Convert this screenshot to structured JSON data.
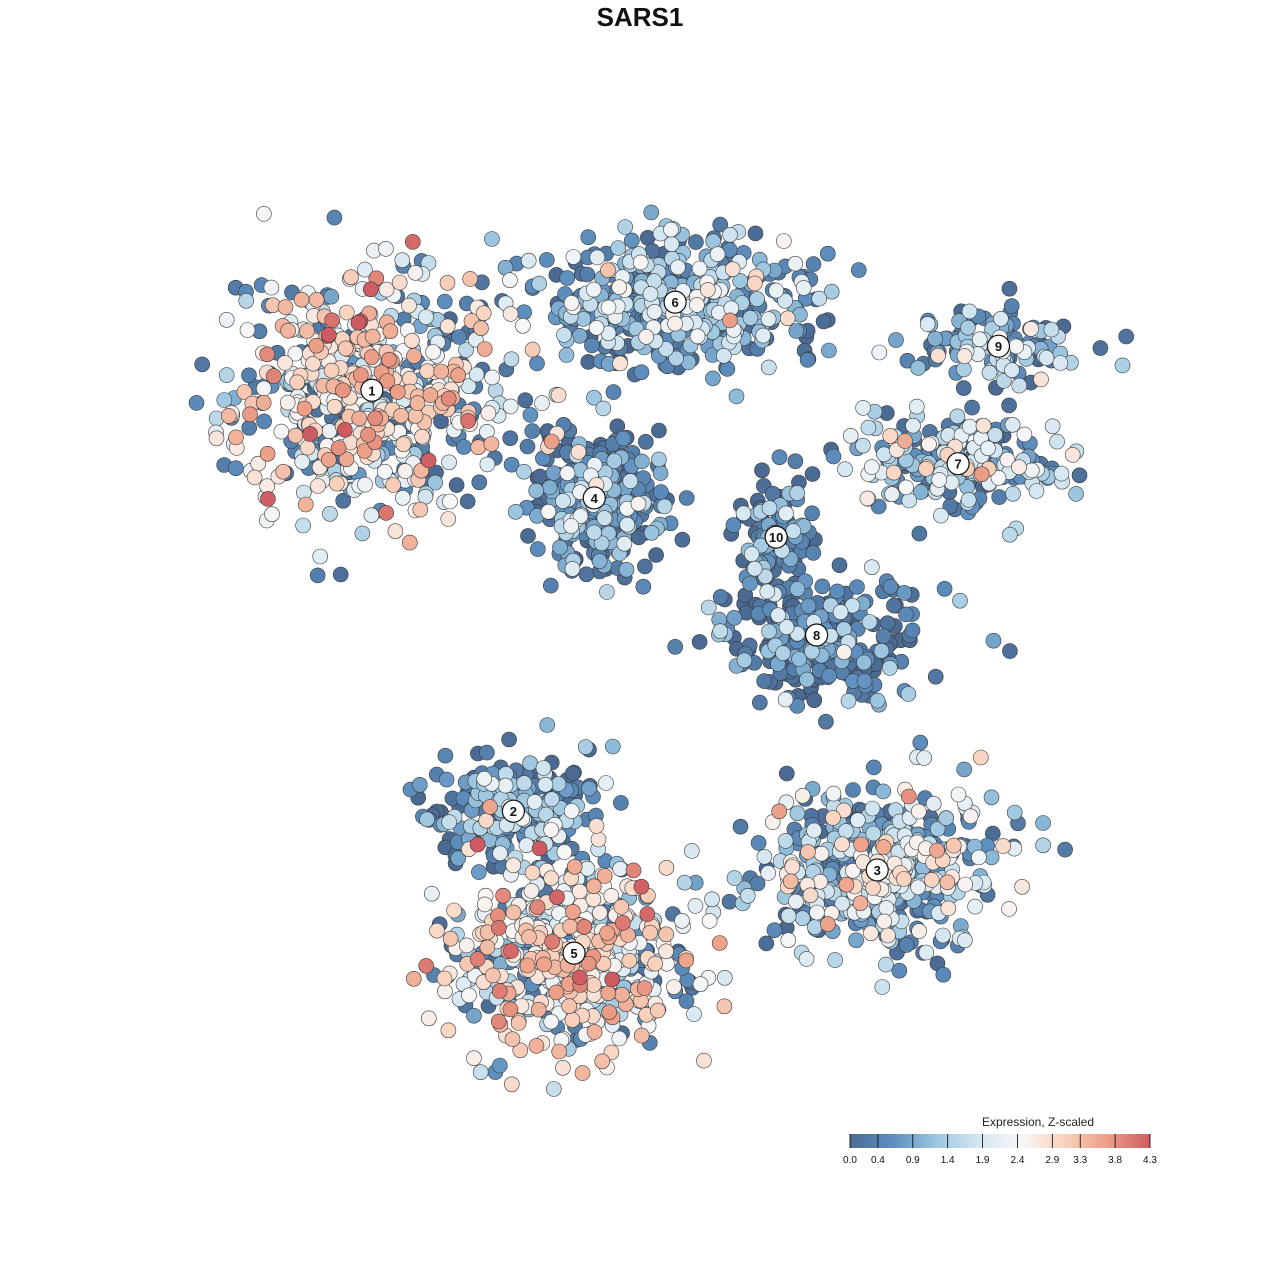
{
  "chart_data": {
    "type": "scatter",
    "title": "SARS1",
    "xlabel": "",
    "ylabel": "",
    "grid": false,
    "legend_placement": "bottom-right",
    "colorbar": {
      "title": "Expression, Z-scaled",
      "range": [
        0.0,
        4.3
      ],
      "ticks": [
        "0.0",
        "0.4",
        "0.9",
        "1.4",
        "1.9",
        "2.4",
        "2.9",
        "3.3",
        "3.8",
        "4.3"
      ],
      "tick_values": [
        0.0,
        0.4,
        0.9,
        1.4,
        1.9,
        2.4,
        2.9,
        3.3,
        3.8,
        4.3
      ],
      "colors": [
        "#4a6a93",
        "#5d8fbf",
        "#9ac5df",
        "#d4e7f1",
        "#f7f7f7",
        "#f9d2bd",
        "#ec9f87",
        "#cf5b62"
      ]
    },
    "clusters": [
      {
        "label": "1",
        "x": -6.5,
        "y": 6.0,
        "mean_expression": 2.5
      },
      {
        "label": "2",
        "x": -3.0,
        "y": -2.6,
        "mean_expression": 0.7
      },
      {
        "label": "3",
        "x": 6.0,
        "y": -3.8,
        "mean_expression": 1.6
      },
      {
        "label": "4",
        "x": -1.0,
        "y": 3.8,
        "mean_expression": 0.5
      },
      {
        "label": "5",
        "x": -1.5,
        "y": -5.5,
        "mean_expression": 2.4
      },
      {
        "label": "6",
        "x": 1.0,
        "y": 7.8,
        "mean_expression": 1.3
      },
      {
        "label": "7",
        "x": 8.0,
        "y": 4.5,
        "mean_expression": 1.5
      },
      {
        "label": "8",
        "x": 4.5,
        "y": 1.0,
        "mean_expression": 0.4
      },
      {
        "label": "9",
        "x": 9.0,
        "y": 6.9,
        "mean_expression": 1.3
      },
      {
        "label": "10",
        "x": 3.5,
        "y": 3.0,
        "mean_expression": 0.6
      }
    ]
  }
}
